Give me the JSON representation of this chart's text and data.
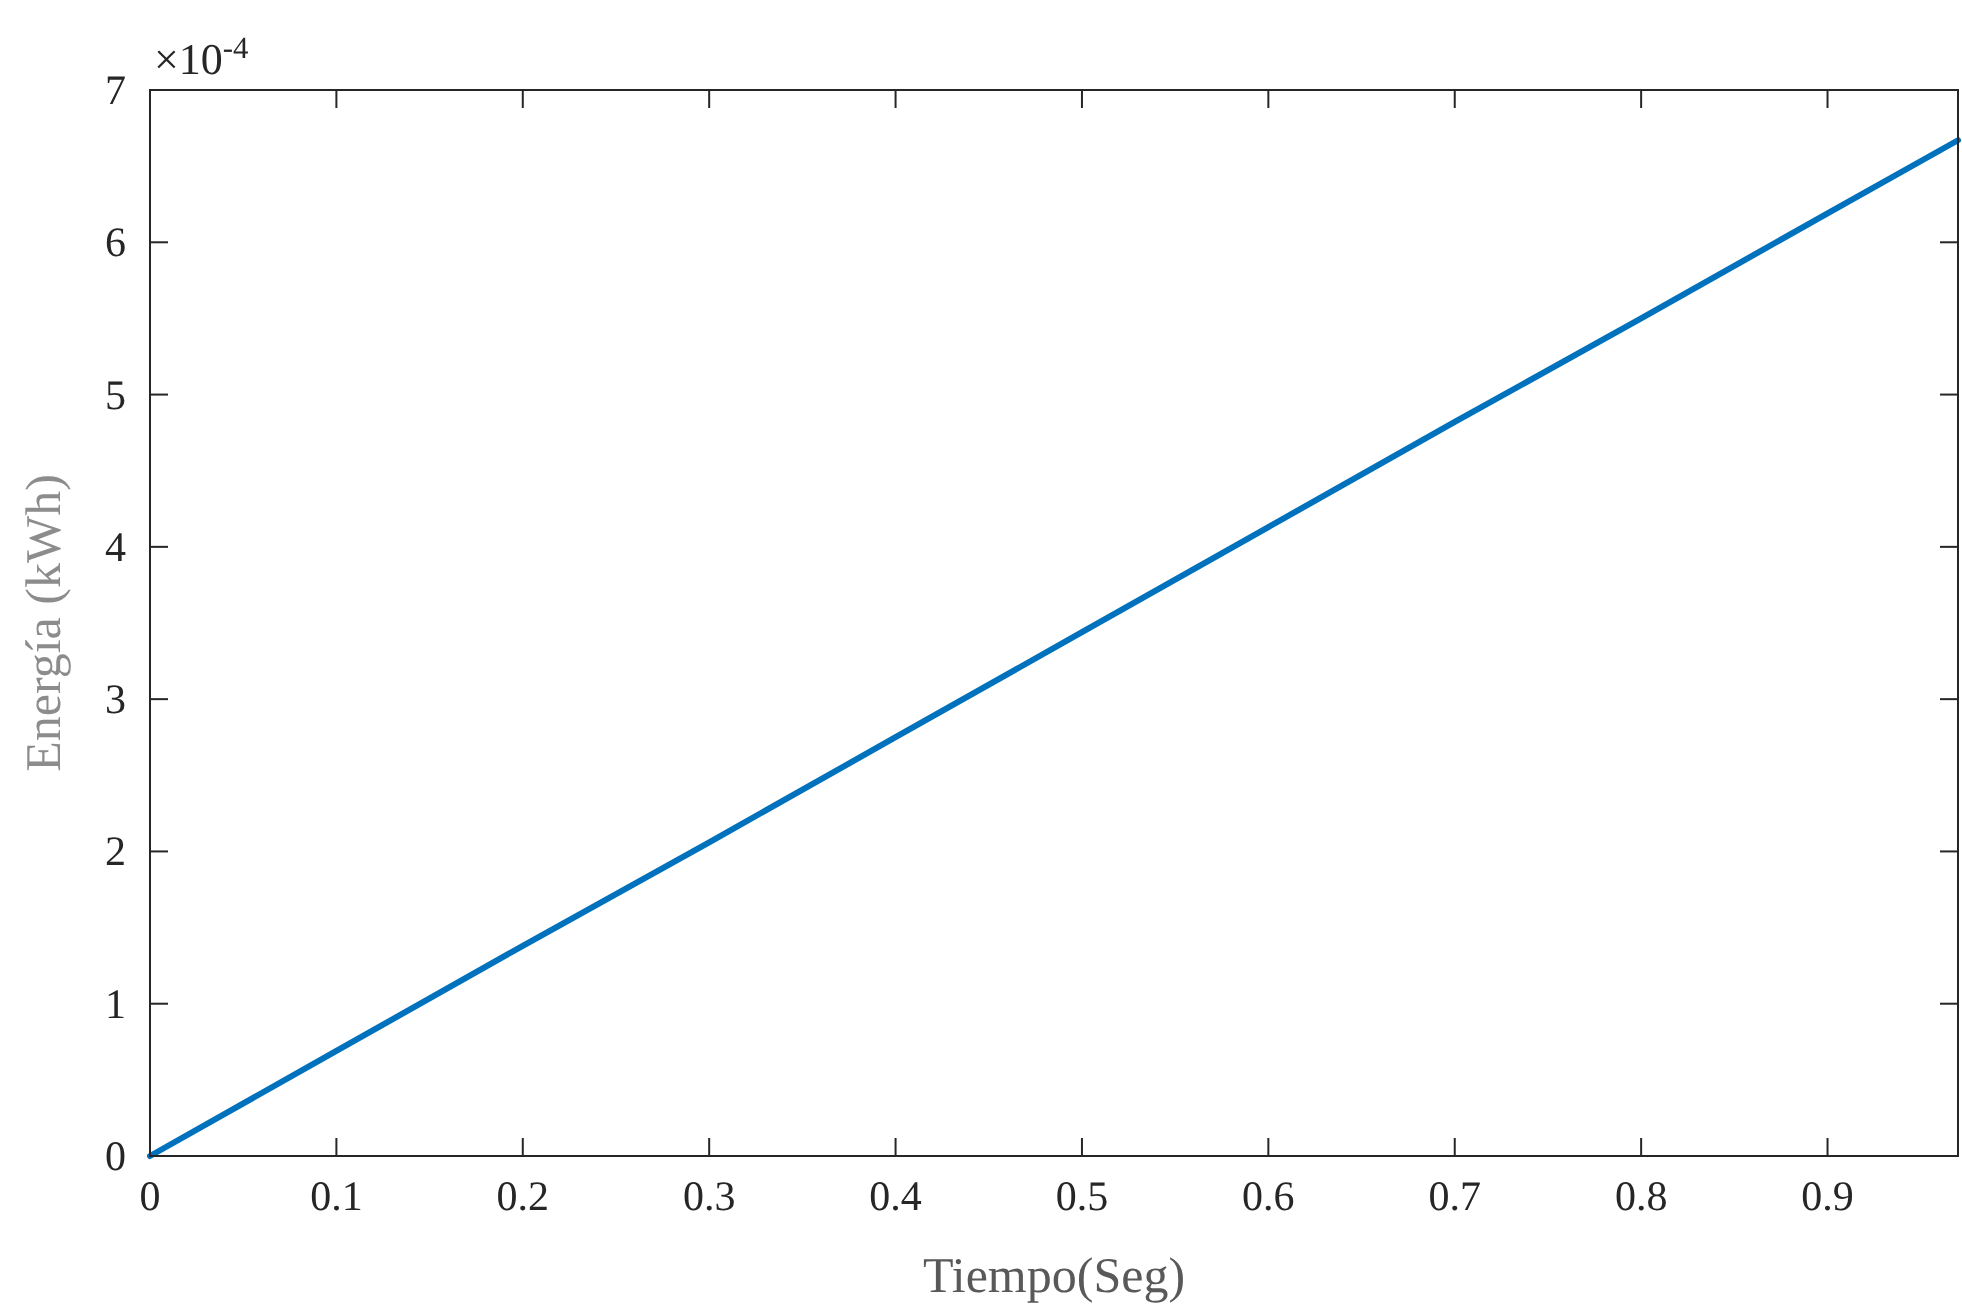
{
  "chart_data": {
    "type": "line",
    "xlabel": "Tiempo(Seg)",
    "ylabel": "Energía (kWh)",
    "annotations": [
      "×10$^{-4}$"
    ],
    "x": [
      0,
      0.1,
      0.2,
      0.3,
      0.4,
      0.5,
      0.6,
      0.7,
      0.8,
      0.9,
      0.97
    ],
    "series": [
      {
        "color": "#0072bd",
        "values": [
          0,
          0.69,
          1.38,
          2.06,
          2.75,
          3.44,
          4.13,
          4.82,
          5.5,
          6.19,
          6.67
        ]
      }
    ],
    "xlim": [
      0,
      0.97
    ],
    "xticks": [
      0,
      0.1,
      0.2,
      0.3,
      0.4,
      0.5,
      0.6,
      0.7,
      0.8,
      0.9
    ],
    "ylim": [
      0,
      7
    ],
    "yticks": [
      0,
      1,
      2,
      3,
      4,
      5,
      6,
      7
    ],
    "grid": false,
    "marker": "none",
    "line_style": "solid"
  }
}
